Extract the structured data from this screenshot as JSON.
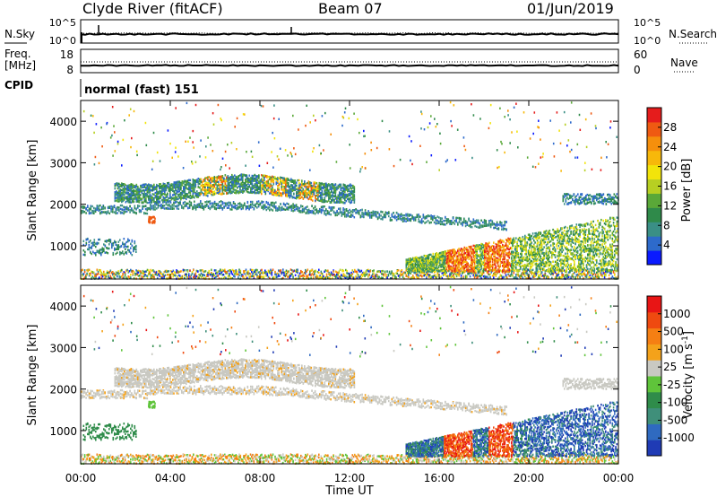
{
  "header": {
    "station": "Clyde River (fitACF)",
    "beam": "Beam 07",
    "date": "01/Jun/2019"
  },
  "noise_panel": {
    "left_label": "N.Sky",
    "left_ticks": [
      "10^5",
      "10^0"
    ],
    "right_label": "N.Search",
    "right_ticks": [
      "10^5",
      "10^0"
    ]
  },
  "freq_panel": {
    "left_label": "Freq.",
    "left_unit": "[MHz]",
    "left_ticks": [
      "18",
      "8"
    ],
    "right_label": "Nave",
    "right_ticks": [
      "60",
      "0"
    ]
  },
  "cpid_panel": {
    "label": "CPID",
    "text": "normal (fast) 151"
  },
  "chart_data": [
    {
      "type": "heatmap",
      "name": "power",
      "ylabel": "Slant Range [km]",
      "yticks": [
        "4000",
        "3000",
        "2000",
        "1000"
      ],
      "ytick_values": [
        4000,
        3000,
        2000,
        1000
      ],
      "ylim": [
        200,
        4500
      ],
      "xlim": [
        0,
        24
      ],
      "colorbar": {
        "label": "Power [dB]",
        "ticks": [
          "28",
          "24",
          "20",
          "16",
          "12",
          "8",
          "4"
        ],
        "tick_values": [
          28,
          24,
          20,
          16,
          12,
          8,
          4
        ],
        "range": [
          0,
          30
        ],
        "colors": [
          "#0a1aff",
          "#2d6acb",
          "#3a8f86",
          "#2f8a4a",
          "#5aa838",
          "#b7cf22",
          "#f2e40a",
          "#f7b80a",
          "#f58f0c",
          "#ef5a12",
          "#e51c1c"
        ]
      }
    },
    {
      "type": "heatmap",
      "name": "velocity",
      "ylabel": "Slant Range [km]",
      "yticks": [
        "4000",
        "3000",
        "2000",
        "1000"
      ],
      "ytick_values": [
        4000,
        3000,
        2000,
        1000
      ],
      "ylim": [
        200,
        4500
      ],
      "xlim": [
        0,
        24
      ],
      "colorbar": {
        "label": "Velocity [m s",
        "label_sup": "-1",
        "label_end": "]",
        "ticks": [
          "1000",
          "500",
          "100",
          "25",
          "-25",
          "-100",
          "-500",
          "-1000"
        ],
        "colors": [
          "#1f3bb5",
          "#2f6ac0",
          "#3f8f7a",
          "#2f8c4a",
          "#5fc43a",
          "#c9c9c2",
          "#f4a21a",
          "#f57f13",
          "#ef4a10",
          "#e81515"
        ]
      }
    }
  ],
  "x_axis": {
    "label": "Time UT",
    "ticks": [
      "00:00",
      "04:00",
      "08:00",
      "12:00",
      "16:00",
      "20:00",
      "00:00"
    ],
    "tick_values": [
      0,
      4,
      8,
      12,
      16,
      20,
      24
    ]
  }
}
